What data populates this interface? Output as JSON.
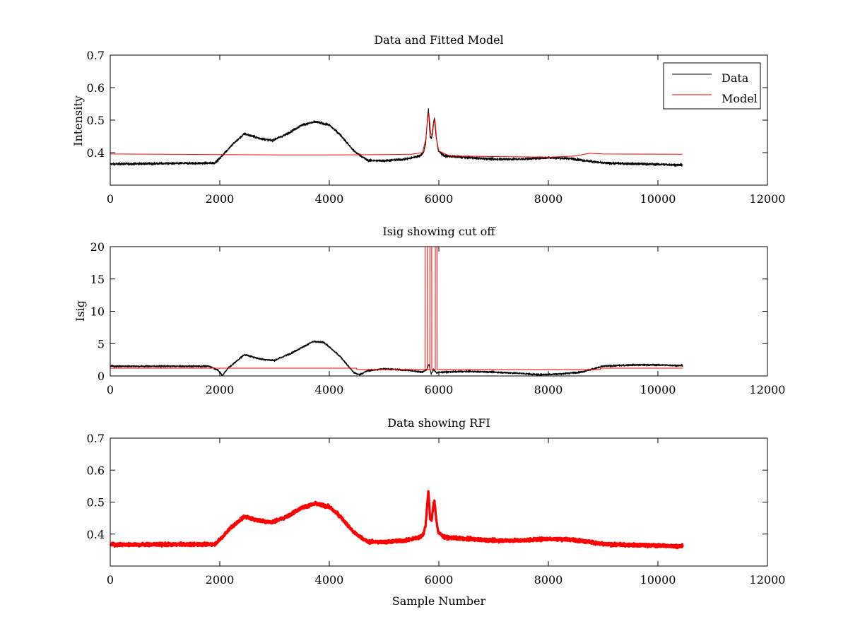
{
  "chart_data": [
    {
      "type": "line",
      "title": "Data and Fitted Model",
      "xlabel": "",
      "ylabel": "Intensity",
      "xlim": [
        0,
        12000
      ],
      "ylim": [
        0.3,
        0.7
      ],
      "xticks": [
        0,
        2000,
        4000,
        6000,
        8000,
        10000,
        12000
      ],
      "yticks": [
        0.4,
        0.5,
        0.6,
        0.7
      ],
      "xtick_labels": [
        "0",
        "2000",
        "4000",
        "6000",
        "8000",
        "10000",
        "12000"
      ],
      "ytick_labels": [
        "0.4",
        "0.5",
        "0.6",
        "0.7"
      ],
      "legend": {
        "position": "top-right",
        "entries": [
          "Data",
          "Model"
        ]
      },
      "series": [
        {
          "name": "Data",
          "color": "#000000",
          "style": "noisy",
          "noise": 0.004,
          "x": [
            0,
            1900,
            2000,
            2200,
            2450,
            2700,
            2950,
            3200,
            3500,
            3750,
            4000,
            4200,
            4450,
            4700,
            5000,
            5400,
            5650,
            5720,
            5760,
            5790,
            5810,
            5840,
            5870,
            5900,
            5920,
            5950,
            5990,
            6100,
            6500,
            7000,
            7500,
            8000,
            8400,
            8700,
            9000,
            9500,
            10000,
            10450
          ],
          "y": [
            0.365,
            0.368,
            0.382,
            0.42,
            0.458,
            0.445,
            0.437,
            0.455,
            0.485,
            0.495,
            0.485,
            0.455,
            0.405,
            0.376,
            0.375,
            0.38,
            0.39,
            0.4,
            0.43,
            0.5,
            0.535,
            0.45,
            0.445,
            0.49,
            0.505,
            0.45,
            0.405,
            0.39,
            0.385,
            0.38,
            0.38,
            0.385,
            0.382,
            0.375,
            0.368,
            0.366,
            0.364,
            0.362
          ]
        },
        {
          "name": "Model",
          "color": "#ff0000",
          "style": "smooth",
          "noise": 0,
          "x": [
            0,
            2000,
            3000,
            4000,
            5000,
            5500,
            5700,
            5760,
            5800,
            5820,
            5850,
            5880,
            5910,
            5930,
            5960,
            6000,
            6200,
            7000,
            8000,
            8500,
            8750,
            9000,
            10450
          ],
          "y": [
            0.396,
            0.394,
            0.393,
            0.393,
            0.394,
            0.395,
            0.4,
            0.44,
            0.51,
            0.52,
            0.46,
            0.45,
            0.495,
            0.5,
            0.44,
            0.405,
            0.39,
            0.388,
            0.386,
            0.39,
            0.398,
            0.396,
            0.395
          ]
        }
      ]
    },
    {
      "type": "line",
      "title": "Isig showing cut off",
      "xlabel": "",
      "ylabel": "Isig",
      "xlim": [
        0,
        12000
      ],
      "ylim": [
        0,
        20
      ],
      "xticks": [
        0,
        2000,
        4000,
        6000,
        8000,
        10000,
        12000
      ],
      "yticks": [
        0,
        5,
        10,
        15,
        20
      ],
      "xtick_labels": [
        "0",
        "2000",
        "4000",
        "6000",
        "8000",
        "10000",
        "12000"
      ],
      "ytick_labels": [
        "0",
        "5",
        "10",
        "15",
        "20"
      ],
      "series": [
        {
          "name": "Isig",
          "color": "#000000",
          "style": "noisy",
          "noise": 0.15,
          "x": [
            0,
            1800,
            1950,
            2050,
            2150,
            2450,
            2750,
            3000,
            3300,
            3700,
            3900,
            4200,
            4450,
            4550,
            4700,
            5000,
            5400,
            5700,
            5780,
            5820,
            5860,
            5900,
            5960,
            6100,
            6500,
            7000,
            7500,
            7800,
            8200,
            8600,
            9000,
            9500,
            10000,
            10450
          ],
          "y": [
            1.5,
            1.5,
            1.0,
            0.1,
            1.2,
            3.3,
            2.6,
            2.4,
            3.5,
            5.3,
            5.2,
            3.0,
            0.5,
            0.2,
            0.8,
            1.1,
            0.9,
            0.6,
            1.0,
            1.8,
            0.3,
            1.0,
            0.5,
            0.6,
            0.7,
            0.6,
            0.4,
            0.2,
            0.3,
            0.6,
            1.5,
            1.7,
            1.7,
            1.6
          ]
        },
        {
          "name": "Cut off",
          "color": "#ff0000",
          "style": "step",
          "noise": 0,
          "x": [
            0,
            4500,
            4501,
            5750,
            5751,
            5790,
            5791,
            5835,
            5836,
            5870,
            5871,
            5935,
            5936,
            5965,
            5966,
            8950,
            8951,
            10450
          ],
          "y": [
            1.2,
            1.2,
            1.0,
            1.0,
            20.5,
            20.5,
            1.0,
            1.0,
            20.5,
            20.5,
            1.0,
            1.0,
            20.5,
            20.5,
            1.0,
            1.0,
            1.2,
            1.2
          ]
        }
      ]
    },
    {
      "type": "scatter",
      "title": "Data showing RFI",
      "xlabel": "Sample Number",
      "ylabel": "",
      "xlim": [
        0,
        12000
      ],
      "ylim": [
        0.3,
        0.7
      ],
      "xticks": [
        0,
        2000,
        4000,
        6000,
        8000,
        10000,
        12000
      ],
      "yticks": [
        0.4,
        0.5,
        0.6,
        0.7
      ],
      "xtick_labels": [
        "0",
        "2000",
        "4000",
        "6000",
        "8000",
        "10000",
        "12000"
      ],
      "ytick_labels": [
        "0.4",
        "0.5",
        "0.6",
        "0.7"
      ],
      "series": [
        {
          "name": "RFI",
          "color": "#ff0000",
          "style": "thick",
          "noise": 0.005,
          "x": [
            0,
            1900,
            2000,
            2200,
            2450,
            2700,
            2950,
            3200,
            3500,
            3750,
            4000,
            4200,
            4450,
            4700,
            5000,
            5400,
            5650,
            5720,
            5760,
            5790,
            5810,
            5840,
            5870,
            5900,
            5920,
            5950,
            5990,
            6100,
            6500,
            7000,
            7500,
            8000,
            8400,
            8700,
            9000,
            9500,
            10000,
            10450
          ],
          "y": [
            0.367,
            0.368,
            0.382,
            0.42,
            0.455,
            0.443,
            0.437,
            0.452,
            0.483,
            0.495,
            0.485,
            0.455,
            0.405,
            0.376,
            0.375,
            0.38,
            0.39,
            0.4,
            0.43,
            0.5,
            0.535,
            0.45,
            0.445,
            0.49,
            0.505,
            0.45,
            0.405,
            0.39,
            0.385,
            0.38,
            0.38,
            0.385,
            0.383,
            0.377,
            0.368,
            0.366,
            0.364,
            0.362
          ]
        }
      ]
    }
  ]
}
